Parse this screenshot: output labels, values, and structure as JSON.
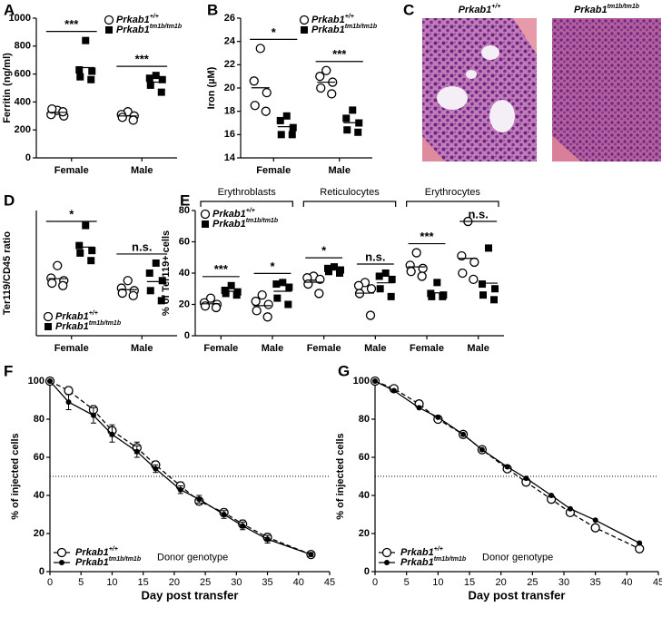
{
  "chart_data": [
    {
      "panel": "A",
      "type": "dot",
      "y_label": "Ferritin (ng/ml)",
      "categories": [
        "Female",
        "Male"
      ],
      "ylim": [
        0,
        1000
      ],
      "yticks": [
        0,
        200,
        400,
        600,
        800,
        1000
      ],
      "legend": "upper right",
      "series": [
        {
          "name": "Prkab1+/+",
          "marker": "open-circle",
          "color": "#000000",
          "values": [
            [
              340,
              310,
              300,
              350,
              330
            ],
            [
              330,
              310,
              300,
              290,
              270
            ]
          ]
        },
        {
          "name": "Prkab1tm1b/tm1b",
          "marker": "filled-square",
          "color": "#000000",
          "values": [
            [
              840,
              630,
              620,
              580,
              560
            ],
            [
              590,
              570,
              560,
              520,
              470
            ]
          ]
        }
      ],
      "annotations": [
        "***",
        "***"
      ]
    },
    {
      "panel": "B",
      "type": "dot",
      "y_label": "Iron (µM)",
      "categories": [
        "Female",
        "Male"
      ],
      "ylim": [
        14,
        26
      ],
      "yticks": [
        14,
        16,
        18,
        20,
        22,
        24,
        26
      ],
      "legend": "upper right",
      "series": [
        {
          "name": "Prkab1+/+",
          "marker": "open-circle",
          "color": "#000000",
          "values": [
            [
              23.4,
              20.6,
              19.6,
              18.5,
              18.0
            ],
            [
              21.5,
              21.0,
              20.5,
              20.0,
              19.5
            ]
          ]
        },
        {
          "name": "Prkab1tm1b/tm1b",
          "marker": "filled-square",
          "color": "#000000",
          "values": [
            [
              17.6,
              17.2,
              16.6,
              16.0,
              16.0
            ],
            [
              18.1,
              17.4,
              17.0,
              16.4,
              16.2
            ]
          ]
        }
      ],
      "annotations": [
        "*",
        "***"
      ]
    },
    {
      "panel": "D",
      "type": "dot",
      "y_label": "Ter119/CD45 ratio",
      "categories": [
        "Female",
        "Male"
      ],
      "ylim": [
        0.5,
        3.0
      ],
      "legend": "lower left",
      "series": [
        {
          "name": "Prkab1+/+",
          "marker": "open-circle",
          "color": "#000000",
          "values": [
            [
              1.9,
              1.65,
              1.6,
              1.55,
              1.5
            ],
            [
              1.6,
              1.45,
              1.4,
              1.35,
              1.3
            ]
          ]
        },
        {
          "name": "Prkab1tm1b/tm1b",
          "marker": "filled-square",
          "color": "#000000",
          "values": [
            [
              2.7,
              2.3,
              2.2,
              2.15,
              2.0
            ],
            [
              1.95,
              1.75,
              1.6,
              1.4,
              1.2
            ]
          ]
        }
      ],
      "annotations": [
        "*",
        "n.s."
      ]
    },
    {
      "panel": "E",
      "type": "dot",
      "y_label": "% of Ter119+ cells",
      "categories": [
        "Female",
        "Male",
        "Female",
        "Male",
        "Female",
        "Male"
      ],
      "groups": [
        "Erythroblasts",
        "Reticulocytes",
        "Erythrocytes"
      ],
      "ylim": [
        0,
        80
      ],
      "yticks": [
        0,
        20,
        40,
        60,
        80
      ],
      "legend": "upper left",
      "series": [
        {
          "name": "Prkab1+/+",
          "marker": "open-circle",
          "color": "#000000",
          "values": [
            [
              24,
              21,
              20,
              19,
              18
            ],
            [
              26,
              22,
              20,
              16,
              12
            ],
            [
              38,
              37,
              36,
              33,
              27
            ],
            [
              34,
              32,
              30,
              27,
              13
            ],
            [
              53,
              45,
              43,
              41,
              38
            ],
            [
              73,
              51,
              47,
              40,
              36
            ]
          ]
        },
        {
          "name": "Prkab1tm1b/tm1b",
          "marker": "filled-square",
          "color": "#000000",
          "values": [
            [
              32,
              29,
              28,
              27,
              26
            ],
            [
              34,
              33,
              31,
              24,
              20
            ],
            [
              44,
              43,
              42,
              41,
              40
            ],
            [
              40,
              38,
              36,
              30,
              25
            ],
            [
              34,
              27,
              26,
              25,
              25
            ],
            [
              56,
              33,
              30,
              26,
              23
            ]
          ]
        }
      ],
      "annotations": [
        "***",
        "*",
        "*",
        "n.s.",
        "***",
        "n.s."
      ]
    },
    {
      "panel": "F",
      "type": "line",
      "x_label": "Day post transfer",
      "y_label": "% of injected cells",
      "x": [
        0,
        3,
        7,
        10,
        14,
        17,
        21,
        24,
        28,
        31,
        35,
        42
      ],
      "xlim": [
        0,
        45
      ],
      "xticks": [
        0,
        5,
        10,
        15,
        20,
        25,
        30,
        35,
        40,
        45
      ],
      "ylim": [
        0,
        100
      ],
      "yticks": [
        0,
        20,
        40,
        60,
        80,
        100
      ],
      "reference_line": 50,
      "legend": "lower left",
      "legend_title": "Donor genotype",
      "series": [
        {
          "name": "Prkab1+/+",
          "marker": "open-circle",
          "line_style": "dashed",
          "color": "#000000",
          "values": [
            100,
            95,
            85,
            74,
            65,
            56,
            45,
            37,
            31,
            25,
            18,
            9
          ],
          "errors": [
            0,
            2,
            2,
            3,
            3,
            2,
            2,
            2,
            2,
            2,
            2,
            1
          ]
        },
        {
          "name": "Prkab1tm1b/tm1b",
          "marker": "filled-circle",
          "line_style": "solid",
          "color": "#000000",
          "values": [
            100,
            89,
            82,
            72,
            63,
            54,
            43,
            38,
            30,
            24,
            17,
            9
          ],
          "errors": [
            0,
            4,
            4,
            4,
            3,
            2,
            2,
            2,
            2,
            2,
            2,
            1
          ]
        }
      ]
    },
    {
      "panel": "G",
      "type": "line",
      "x_label": "Day post transfer",
      "y_label": "% of injected cells",
      "x": [
        0,
        3,
        7,
        10,
        14,
        17,
        21,
        24,
        28,
        31,
        35,
        42
      ],
      "xlim": [
        0,
        45
      ],
      "xticks": [
        0,
        5,
        10,
        15,
        20,
        25,
        30,
        35,
        40,
        45
      ],
      "ylim": [
        0,
        100
      ],
      "yticks": [
        0,
        20,
        40,
        60,
        80,
        100
      ],
      "reference_line": 50,
      "legend": "lower left",
      "legend_title": "Donor genotype",
      "series": [
        {
          "name": "Prkab1+/+",
          "marker": "open-circle",
          "line_style": "dashed",
          "color": "#000000",
          "values": [
            100,
            96,
            88,
            80,
            72,
            64,
            54,
            47,
            38,
            31,
            23,
            12
          ]
        },
        {
          "name": "Prkab1tm1b/tm1b",
          "marker": "filled-circle",
          "line_style": "solid",
          "color": "#000000",
          "values": [
            100,
            95,
            86,
            81,
            72,
            64,
            55,
            49,
            40,
            33,
            27,
            15
          ]
        }
      ]
    }
  ],
  "images": {
    "panel": "C",
    "captions": [
      "Prkab1+/+",
      "Prkab1tm1b/tm1b"
    ]
  }
}
